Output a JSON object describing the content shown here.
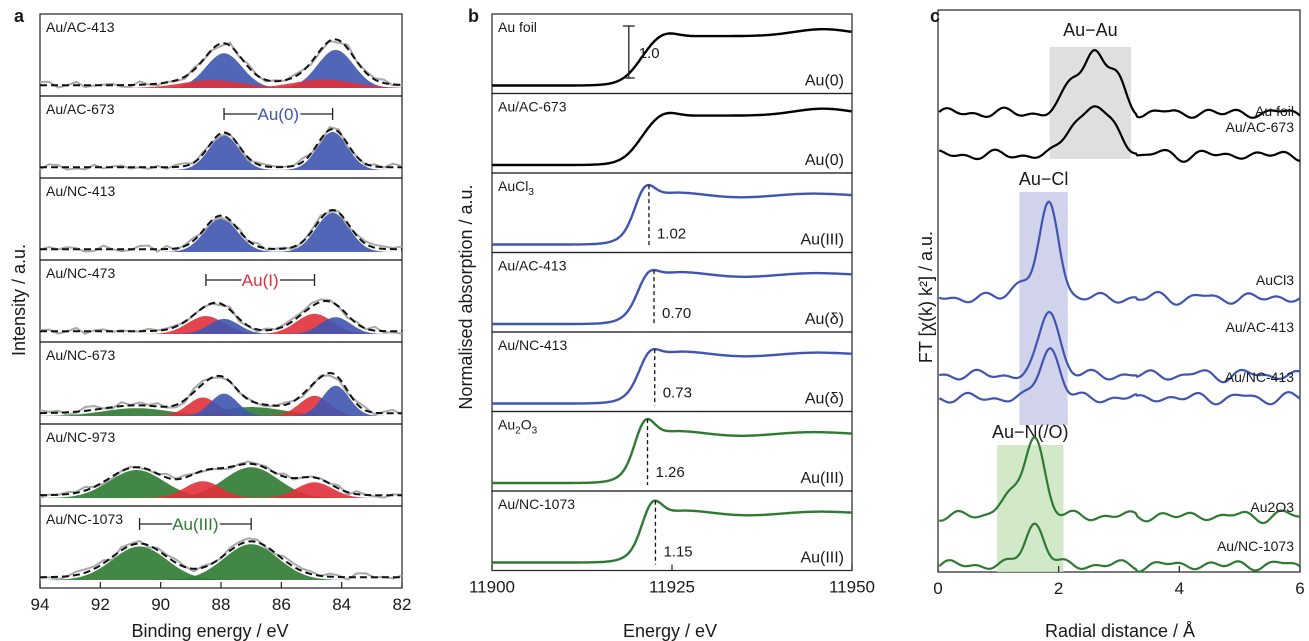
{
  "panels": {
    "a": {
      "label": "a",
      "xlabel": "Binding energy / eV",
      "ylabel": "Intensity / a.u.",
      "xticks": [
        "94",
        "92",
        "90",
        "88",
        "86",
        "84",
        "82"
      ],
      "annotations": {
        "au0": "Au(0)",
        "au1": "Au(I)",
        "au3": "Au(III)"
      },
      "samples": [
        "Au/AC-413",
        "Au/AC-673",
        "Au/NC-413",
        "Au/NC-473",
        "Au/NC-673",
        "Au/NC-973",
        "Au/NC-1073"
      ]
    },
    "b": {
      "label": "b",
      "xlabel": "Energy / eV",
      "ylabel": "Normalised absorption / a.u.",
      "xticks": [
        "11900",
        "11925",
        "11950"
      ],
      "scale_label": "1.0",
      "rows": [
        {
          "name": "Au foil",
          "state": "Au(0)",
          "wl": ""
        },
        {
          "name": "Au/AC-673",
          "state": "Au(0)",
          "wl": ""
        },
        {
          "name": "AuCl",
          "sub": "3",
          "state": "Au(III)",
          "wl": "1.02"
        },
        {
          "name": "Au/AC-413",
          "state": "Au(δ)",
          "wl": "0.70"
        },
        {
          "name": "Au/NC-413",
          "state": "Au(δ)",
          "wl": "0.73"
        },
        {
          "name": "Au",
          "sub": "2",
          "name2": "O",
          "sub2": "3",
          "state": "Au(III)",
          "wl": "1.26"
        },
        {
          "name": "Au/NC-1073",
          "state": "Au(III)",
          "wl": "1.15"
        }
      ]
    },
    "c": {
      "label": "c",
      "xlabel": "Radial distance / Å",
      "ylabel": "FT [χ(k) k²] / a.u.",
      "xticks": [
        "0",
        "2",
        "4",
        "6"
      ],
      "regions": {
        "auau": "Au−Au",
        "aucl": "Au−Cl",
        "aun": "Au−N(/O)"
      },
      "curves": [
        "Au foil",
        "Au/AC-673",
        "AuCl3",
        "Au/AC-413",
        "Au/NC-413",
        "Au2O3",
        "Au/NC-1073"
      ]
    }
  },
  "colors": {
    "au0": "#3f55b0",
    "au1": "#e0303a",
    "au3": "#2f7a32",
    "xanes_au0": "#000000",
    "xanes_au3cl": "#3f55b0",
    "xanes_au3o": "#2f7a32",
    "fit": "#111111",
    "raw": "#a9a9a9",
    "box_auau": "#d9d9d9",
    "box_aucl": "#c9cbea",
    "box_aun": "#c9e4c0"
  },
  "chart_data": [
    {
      "type": "area",
      "panel": "a",
      "title": "",
      "xlabel": "Binding energy / eV",
      "ylabel": "Intensity / a.u.",
      "xlim": [
        94,
        82
      ],
      "x_reversed": true,
      "series": [
        {
          "sample": "Au/AC-413",
          "components": [
            {
              "state": "Au(0)",
              "centers": [
                87.9,
                84.2
              ],
              "heights": [
                0.62,
                0.68
              ],
              "width": 0.6
            },
            {
              "state": "Au(I)",
              "centers": [
                88.3,
                84.6
              ],
              "heights": [
                0.14,
                0.15
              ],
              "width": 1.0
            }
          ]
        },
        {
          "sample": "Au/AC-673",
          "components": [
            {
              "state": "Au(0)",
              "centers": [
                87.9,
                84.3
              ],
              "heights": [
                0.62,
                0.68
              ],
              "width": 0.5
            }
          ]
        },
        {
          "sample": "Au/NC-413",
          "components": [
            {
              "state": "Au(0)",
              "centers": [
                88.0,
                84.3
              ],
              "heights": [
                0.6,
                0.7
              ],
              "width": 0.55
            }
          ]
        },
        {
          "sample": "Au/NC-473",
          "components": [
            {
              "state": "Au(I)",
              "centers": [
                88.5,
                84.9
              ],
              "heights": [
                0.32,
                0.36
              ],
              "width": 0.6
            },
            {
              "state": "Au(0)",
              "centers": [
                87.9,
                84.2
              ],
              "heights": [
                0.27,
                0.3
              ],
              "width": 0.5
            }
          ]
        },
        {
          "sample": "Au/NC-673",
          "components": [
            {
              "state": "Au(III)",
              "centers": [
                90.8,
                87.0
              ],
              "heights": [
                0.14,
                0.16
              ],
              "width": 1.1
            },
            {
              "state": "Au(I)",
              "centers": [
                88.6,
                84.9
              ],
              "heights": [
                0.33,
                0.36
              ],
              "width": 0.5
            },
            {
              "state": "Au(0)",
              "centers": [
                87.9,
                84.2
              ],
              "heights": [
                0.4,
                0.54
              ],
              "width": 0.45
            }
          ]
        },
        {
          "sample": "Au/NC-973",
          "components": [
            {
              "state": "Au(III)",
              "centers": [
                90.8,
                87.0
              ],
              "heights": [
                0.5,
                0.55
              ],
              "width": 0.9
            },
            {
              "state": "Au(I)",
              "centers": [
                88.6,
                84.9
              ],
              "heights": [
                0.3,
                0.28
              ],
              "width": 0.6
            }
          ]
        },
        {
          "sample": "Au/NC-1073",
          "components": [
            {
              "state": "Au(III)",
              "centers": [
                90.7,
                87.0
              ],
              "heights": [
                0.6,
                0.64
              ],
              "width": 0.9
            }
          ]
        }
      ]
    },
    {
      "type": "line",
      "panel": "b",
      "title": "",
      "xlabel": "Energy / eV",
      "ylabel": "Normalised absorption / a.u.",
      "xlim": [
        11900,
        11950
      ],
      "series": [
        {
          "name": "Au foil",
          "edge": 11920.5,
          "white_line": 0.0,
          "group": "au0"
        },
        {
          "name": "Au/AC-673",
          "edge": 11920.5,
          "white_line": 0.0,
          "group": "au0"
        },
        {
          "name": "AuCl3",
          "edge": 11920.0,
          "white_line": 1.02,
          "group": "au3cl"
        },
        {
          "name": "Au/AC-413",
          "edge": 11920.4,
          "white_line": 0.7,
          "group": "au3cl"
        },
        {
          "name": "Au/NC-413",
          "edge": 11920.6,
          "white_line": 0.73,
          "group": "au3cl"
        },
        {
          "name": "Au2O3",
          "edge": 11920.0,
          "white_line": 1.26,
          "group": "au3o"
        },
        {
          "name": "Au/NC-1073",
          "edge": 11921.0,
          "white_line": 1.15,
          "group": "au3o"
        }
      ]
    },
    {
      "type": "line",
      "panel": "c",
      "title": "",
      "xlabel": "Radial distance / Å",
      "ylabel": "FT [χ(k) k²] / a.u.",
      "xlim": [
        0,
        6
      ],
      "regions": [
        {
          "label": "Au−Au",
          "range": [
            1.85,
            3.2
          ]
        },
        {
          "label": "Au−Cl",
          "range": [
            1.35,
            2.15
          ]
        },
        {
          "label": "Au−N(/O)",
          "range": [
            0.98,
            2.08
          ]
        }
      ],
      "series": [
        {
          "name": "Au foil",
          "peaks": [
            [
              2.25,
              0.55
            ],
            [
              2.6,
              0.95
            ],
            [
              2.95,
              0.55
            ]
          ]
        },
        {
          "name": "Au/AC-673",
          "peaks": [
            [
              2.25,
              0.5
            ],
            [
              2.6,
              0.75
            ],
            [
              2.95,
              0.4
            ]
          ]
        },
        {
          "name": "AuCl3",
          "peaks": [
            [
              1.85,
              1.55
            ],
            [
              1.4,
              0.3
            ]
          ]
        },
        {
          "name": "Au/AC-413",
          "peaks": [
            [
              1.85,
              1.1
            ]
          ]
        },
        {
          "name": "Au/NC-413",
          "peaks": [
            [
              1.85,
              0.85
            ]
          ]
        },
        {
          "name": "Au2O3",
          "peaks": [
            [
              1.6,
              1.35
            ],
            [
              1.15,
              0.35
            ]
          ]
        },
        {
          "name": "Au/NC-1073",
          "peaks": [
            [
              1.6,
              0.7
            ]
          ]
        }
      ]
    }
  ]
}
